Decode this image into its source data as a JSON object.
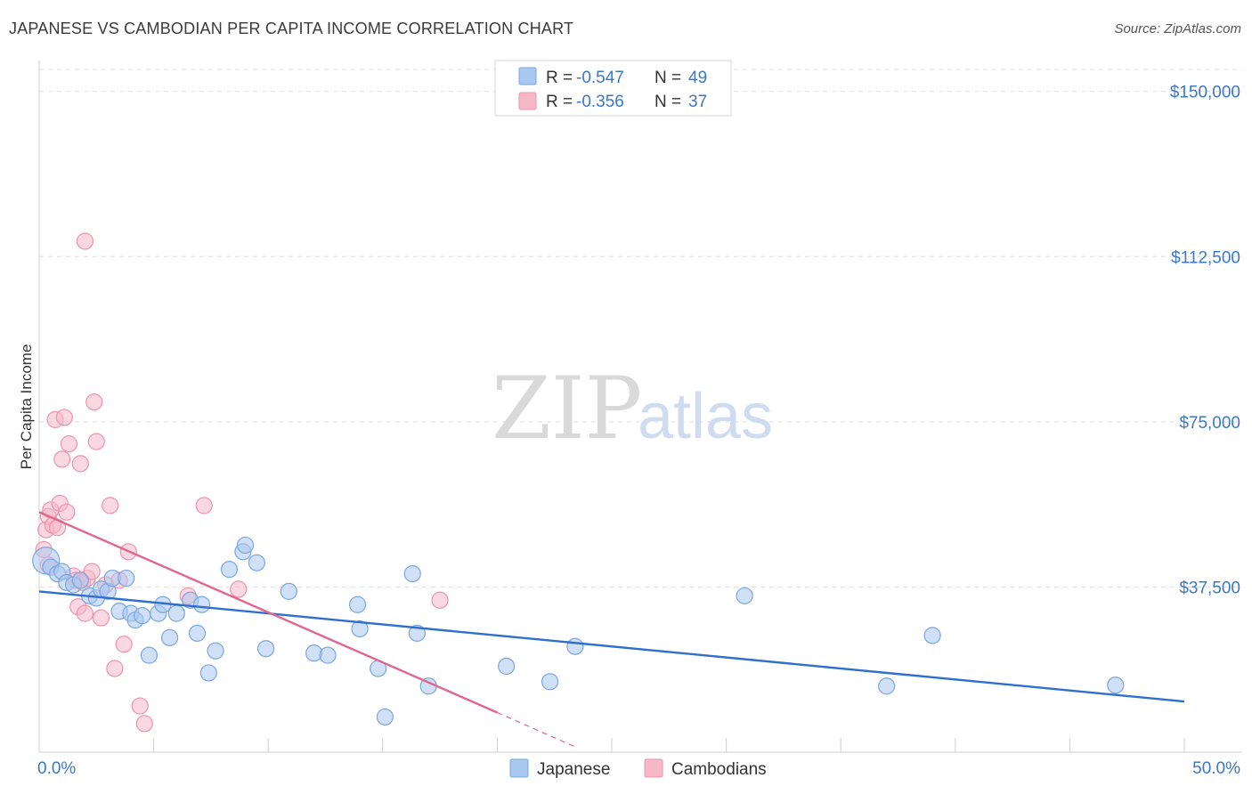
{
  "title": "JAPANESE VS CAMBODIAN PER CAPITA INCOME CORRELATION CHART",
  "source": "Source: ZipAtlas.com",
  "watermark": {
    "zip": "ZIP",
    "atlas": "atlas"
  },
  "colors": {
    "japanese_fill": "#a9c8f0",
    "japanese_stroke": "#7aa6e0",
    "japanese_line": "#2f6fcf",
    "cambodian_fill": "#f6b8c8",
    "cambodian_stroke": "#ee93ad",
    "cambodian_line": "#e0668f"
  },
  "legend": {
    "rows": [
      {
        "r_label": "R =",
        "r_value": "-0.547",
        "n_label": "N =",
        "n_value": "49"
      },
      {
        "r_label": "R =",
        "r_value": "-0.356",
        "n_label": "N =",
        "n_value": "37"
      }
    ]
  },
  "chart_data": {
    "type": "scatter",
    "title": "JAPANESE VS CAMBODIAN PER CAPITA INCOME CORRELATION CHART",
    "ylabel": "Per Capita Income",
    "xlabel": "",
    "xlim": [
      0,
      50
    ],
    "ylim": [
      0,
      155000
    ],
    "x_tick_labels": [
      "0.0%",
      "50.0%"
    ],
    "y_ticks": [
      37500,
      75000,
      112500,
      150000
    ],
    "y_tick_labels": [
      "$37,500",
      "$75,000",
      "$112,500",
      "$150,000"
    ],
    "grid": true,
    "series": [
      {
        "name": "Japanese",
        "points": [
          [
            0.3,
            43500
          ],
          [
            0.5,
            42000
          ],
          [
            0.8,
            40500
          ],
          [
            1.0,
            41000
          ],
          [
            1.2,
            38500
          ],
          [
            1.5,
            38000
          ],
          [
            1.8,
            39000
          ],
          [
            2.2,
            35500
          ],
          [
            2.5,
            35000
          ],
          [
            2.7,
            37000
          ],
          [
            3.0,
            36500
          ],
          [
            3.2,
            39500
          ],
          [
            3.5,
            32000
          ],
          [
            3.8,
            39500
          ],
          [
            4.0,
            31500
          ],
          [
            4.2,
            30000
          ],
          [
            4.5,
            31000
          ],
          [
            4.8,
            22000
          ],
          [
            5.2,
            31500
          ],
          [
            5.4,
            33500
          ],
          [
            5.7,
            26000
          ],
          [
            6.0,
            31500
          ],
          [
            6.6,
            34500
          ],
          [
            6.9,
            27000
          ],
          [
            7.1,
            33500
          ],
          [
            7.4,
            18000
          ],
          [
            7.7,
            23000
          ],
          [
            8.3,
            41500
          ],
          [
            8.9,
            45500
          ],
          [
            9.0,
            47000
          ],
          [
            9.5,
            43000
          ],
          [
            9.9,
            23500
          ],
          [
            10.9,
            36500
          ],
          [
            12.0,
            22500
          ],
          [
            12.6,
            22000
          ],
          [
            13.9,
            33500
          ],
          [
            14.0,
            28000
          ],
          [
            14.8,
            19000
          ],
          [
            15.1,
            8000
          ],
          [
            16.3,
            40500
          ],
          [
            16.5,
            27000
          ],
          [
            17.0,
            15000
          ],
          [
            20.4,
            19500
          ],
          [
            22.3,
            16000
          ],
          [
            23.4,
            24000
          ],
          [
            30.8,
            35500
          ],
          [
            37.0,
            15000
          ],
          [
            39.0,
            26500
          ],
          [
            47.0,
            15200
          ]
        ],
        "trend": {
          "x0": 0,
          "y0": 36500,
          "x1": 50,
          "y1": 11500
        }
      },
      {
        "name": "Cambodians",
        "points": [
          [
            0.2,
            46000
          ],
          [
            0.3,
            50500
          ],
          [
            0.4,
            53500
          ],
          [
            0.5,
            55000
          ],
          [
            0.6,
            51500
          ],
          [
            0.7,
            75500
          ],
          [
            0.8,
            51000
          ],
          [
            0.9,
            56500
          ],
          [
            1.0,
            66500
          ],
          [
            1.1,
            76000
          ],
          [
            1.2,
            54500
          ],
          [
            1.3,
            70000
          ],
          [
            1.5,
            40000
          ],
          [
            1.6,
            39000
          ],
          [
            1.7,
            33000
          ],
          [
            1.8,
            65500
          ],
          [
            1.9,
            38500
          ],
          [
            2.0,
            31500
          ],
          [
            2.1,
            39500
          ],
          [
            2.3,
            41000
          ],
          [
            2.4,
            79500
          ],
          [
            2.5,
            70500
          ],
          [
            2.7,
            30500
          ],
          [
            2.9,
            38000
          ],
          [
            3.1,
            56000
          ],
          [
            3.3,
            19000
          ],
          [
            3.5,
            39000
          ],
          [
            3.7,
            24500
          ],
          [
            3.9,
            45500
          ],
          [
            4.4,
            10500
          ],
          [
            4.6,
            6500
          ],
          [
            6.5,
            35500
          ],
          [
            7.2,
            56000
          ],
          [
            8.7,
            37000
          ],
          [
            17.5,
            34500
          ],
          [
            2.0,
            116000
          ],
          [
            0.4,
            42500
          ]
        ],
        "trend": {
          "x0": 0,
          "y0": 54500,
          "x1": 20,
          "y1": 9000
        },
        "trend_dashed": {
          "x0": 20,
          "y0": 9000,
          "x1": 23.5,
          "y1": 1000
        }
      }
    ]
  }
}
